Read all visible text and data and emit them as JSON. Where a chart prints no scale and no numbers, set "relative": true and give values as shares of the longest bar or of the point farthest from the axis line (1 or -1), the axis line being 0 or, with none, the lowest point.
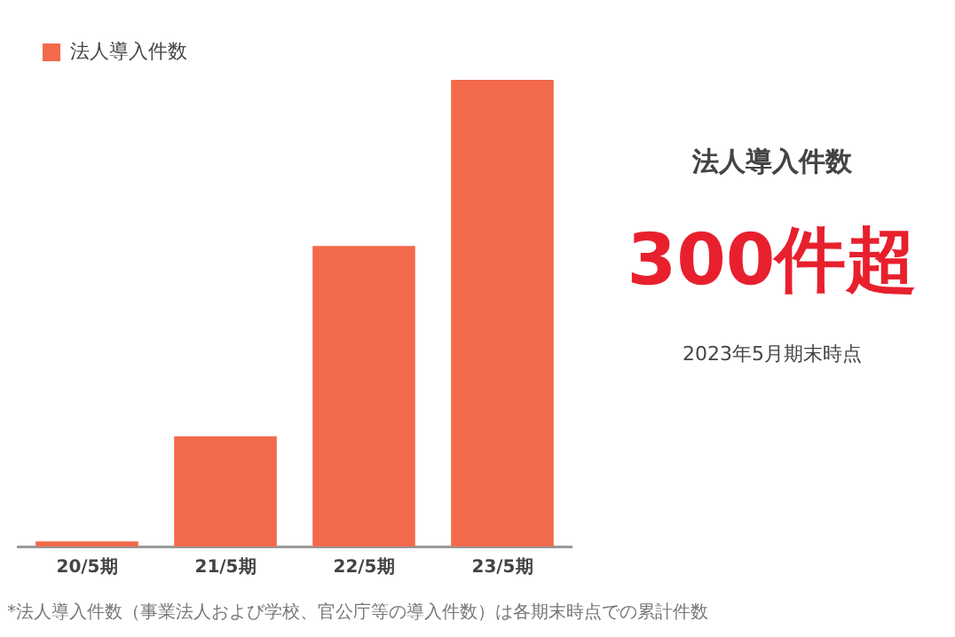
{
  "chart_data": {
    "type": "bar",
    "relative": true,
    "categories": [
      "20/5期",
      "21/5期",
      "22/5期",
      "23/5期"
    ],
    "series": [
      {
        "name": "法人導入件数",
        "color": "#f26a4b",
        "values": [
          0.011,
          0.236,
          0.644,
          1
        ]
      }
    ],
    "legend": "top left",
    "grid": false,
    "annotations": [
      "法人導入件数",
      "300件超",
      "2023年5月期末時点",
      "*法人導入件数（事業法人および学校、官公庁等の導入件数）は各期末時点での累計件数"
    ]
  }
}
